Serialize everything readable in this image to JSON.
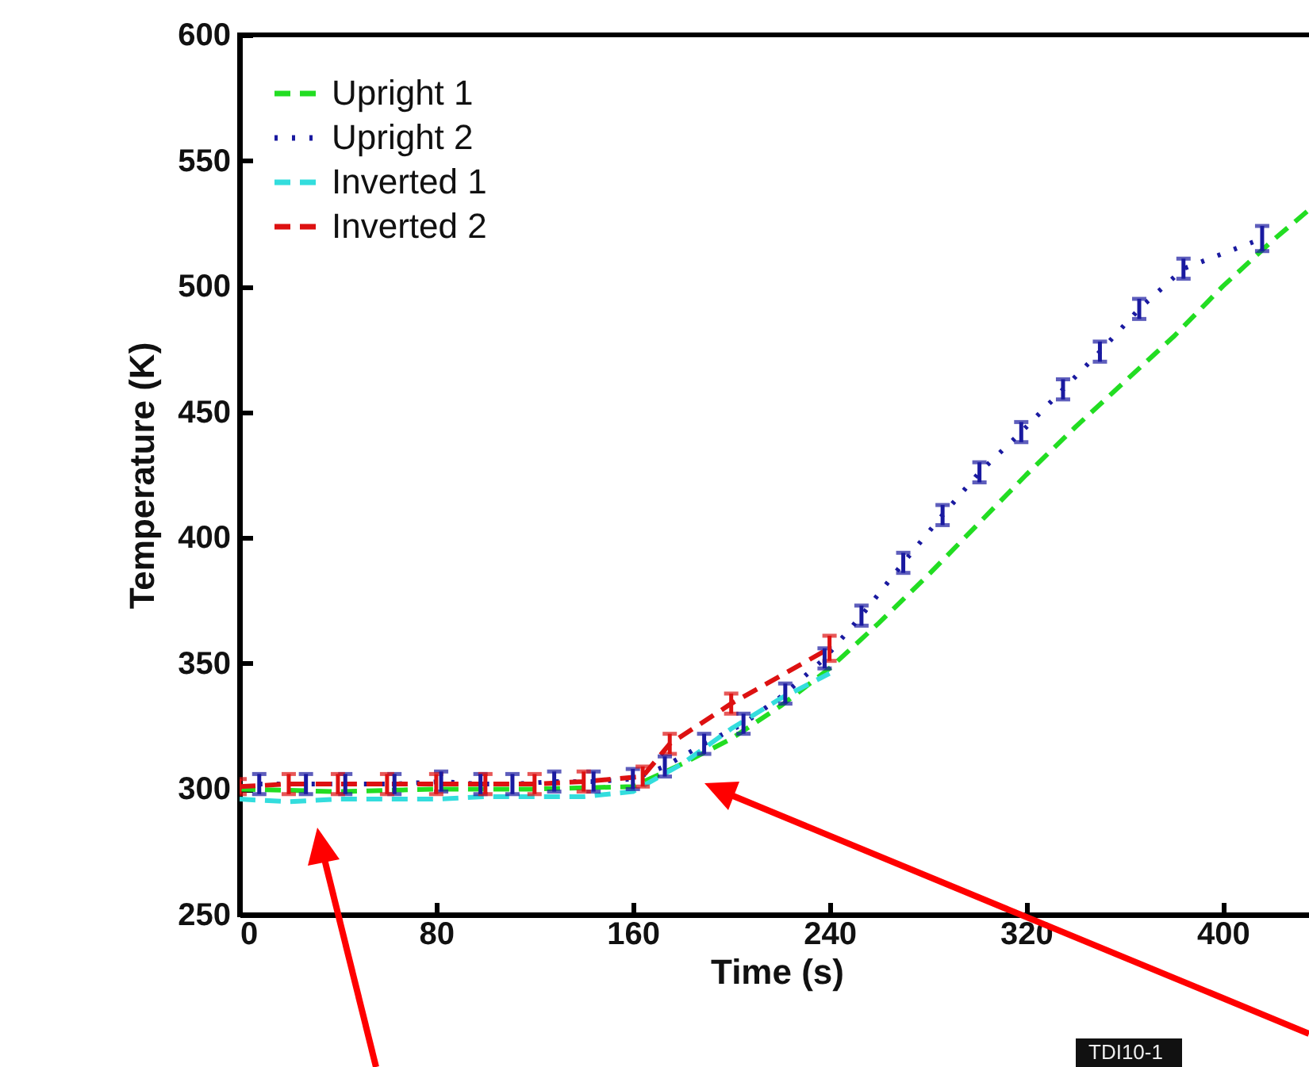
{
  "chart_data": {
    "type": "line",
    "xlabel": "Time (s)",
    "ylabel": "Temperature (K)",
    "xlim": [
      0,
      437
    ],
    "ylim": [
      250,
      600
    ],
    "xticks": [
      0,
      80,
      160,
      240,
      320,
      400
    ],
    "yticks": [
      250,
      300,
      350,
      400,
      450,
      500,
      550,
      600
    ],
    "legend": "top left",
    "grid": false,
    "annotations": [
      "TDI10-1"
    ],
    "series": [
      {
        "name": "Upright 1",
        "color": "#22dd22",
        "line_style": "dashed",
        "x": [
          0,
          40,
          80,
          120,
          160,
          180,
          200,
          220,
          240,
          260,
          280,
          300,
          320,
          340,
          360,
          380,
          400,
          420,
          437
        ],
        "values": [
          300,
          299,
          300,
          300,
          301,
          310,
          320,
          333,
          348,
          366,
          385,
          405,
          425,
          444,
          462,
          480,
          500,
          518,
          532
        ]
      },
      {
        "name": "Upright 2",
        "color": "#1a1aa0",
        "line_style": "dotted",
        "x": [
          8,
          27,
          43,
          63,
          82,
          98,
          111,
          128,
          144,
          160,
          173,
          189,
          205,
          222,
          238,
          253,
          270,
          286,
          301,
          318,
          335,
          350,
          366,
          384,
          416
        ],
        "values": [
          302,
          302,
          302,
          302,
          303,
          302,
          302,
          303,
          303,
          304,
          309,
          318,
          326,
          338,
          352,
          369,
          390,
          409,
          426,
          442,
          459,
          474,
          491,
          507,
          519
        ],
        "errors": [
          4,
          4,
          4,
          4,
          4,
          4,
          4,
          4,
          4,
          4,
          4,
          4,
          4,
          4,
          4,
          4,
          4,
          4,
          4,
          4,
          4,
          4,
          4,
          4,
          5
        ]
      },
      {
        "name": "Inverted 1",
        "color": "#33dddd",
        "line_style": "dashed",
        "x": [
          0,
          20,
          40,
          60,
          80,
          100,
          120,
          140,
          160,
          180,
          200,
          220,
          240
        ],
        "values": [
          296,
          295,
          296,
          296,
          296,
          297,
          297,
          297,
          299,
          310,
          324,
          336,
          346
        ]
      },
      {
        "name": "Inverted 2",
        "color": "#dd1111",
        "line_style": "dashed",
        "x": [
          0,
          20,
          40,
          60,
          80,
          100,
          120,
          140,
          164,
          175,
          200,
          240
        ],
        "values": [
          301,
          302,
          302,
          302,
          302,
          302,
          302,
          303,
          305,
          318,
          334,
          356
        ],
        "errors": [
          3,
          4,
          4,
          4,
          4,
          4,
          4,
          4,
          4,
          4,
          4,
          5
        ]
      }
    ]
  }
}
